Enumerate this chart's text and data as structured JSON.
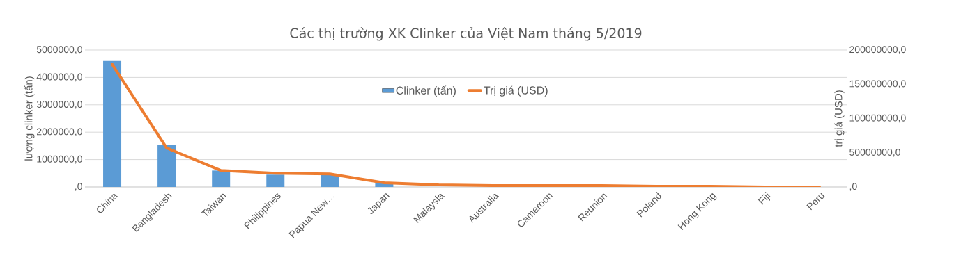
{
  "chart_data": {
    "type": "bar",
    "title": "Các thị trường XK Clinker của Việt Nam tháng 5/2019",
    "ylabel": "lượng clinker (tấn)",
    "y2label": "trị giá (USD)",
    "categories": [
      "China",
      "Bangladesh",
      "Taiwan",
      "Philippines",
      "Papua New…",
      "Japan",
      "Malaysia",
      "Australia",
      "Cameroon",
      "Reunion",
      "Poland",
      "Hong Kong",
      "Fiji",
      "Peru"
    ],
    "series": [
      {
        "name": "Clinker (tấn)",
        "color": "#5b9bd5",
        "values": [
          4600000,
          1550000,
          600000,
          450000,
          450000,
          150000,
          null,
          null,
          null,
          null,
          null,
          null,
          null,
          null
        ]
      },
      {
        "name": "Trị giá (USD)",
        "type": "line",
        "axis": "y2",
        "color": "#ed7d31",
        "values": [
          179000000,
          57000000,
          24000000,
          20000000,
          19000000,
          6000000,
          3000000,
          2000000,
          2000000,
          2000000,
          1000000,
          1000000,
          0,
          0
        ]
      }
    ],
    "ylim": [
      0,
      5000000
    ],
    "yticks": [
      {
        "value": 0,
        "label": ",0"
      },
      {
        "value": 1000000,
        "label": "1000000,0"
      },
      {
        "value": 2000000,
        "label": "2000000,0"
      },
      {
        "value": 3000000,
        "label": "3000000,0"
      },
      {
        "value": 4000000,
        "label": "4000000,0"
      },
      {
        "value": 5000000,
        "label": "5000000,0"
      }
    ],
    "y2lim": [
      0,
      200000000
    ],
    "y2ticks": [
      {
        "value": 0,
        "label": ",0"
      },
      {
        "value": 50000000,
        "label": "50000000,0"
      },
      {
        "value": 100000000,
        "label": "100000000,0"
      },
      {
        "value": 150000000,
        "label": "150000000,0"
      },
      {
        "value": 200000000,
        "label": "200000000,0"
      }
    ],
    "grid": "y",
    "legend": "top"
  }
}
